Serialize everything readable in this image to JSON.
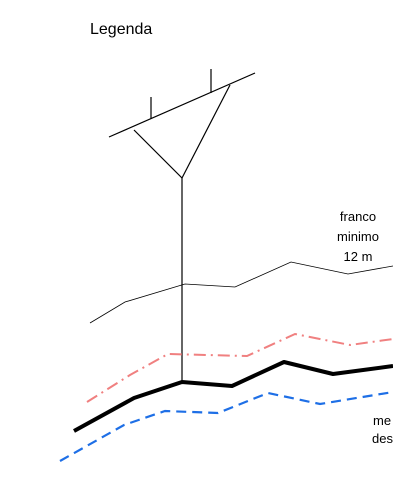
{
  "legend": {
    "title": "Legenda"
  },
  "clearance": {
    "line1": "franco",
    "line2": "minimo",
    "line3": "12 m"
  },
  "cut_label": {
    "line1": "me",
    "line2": "des"
  },
  "colors": {
    "structure": "#000000",
    "terrain": "#000000",
    "dash_dot_line": "#f08080",
    "ground_line": "#000000",
    "dashed_line": "#1e6fe6",
    "background": "#ffffff"
  }
}
